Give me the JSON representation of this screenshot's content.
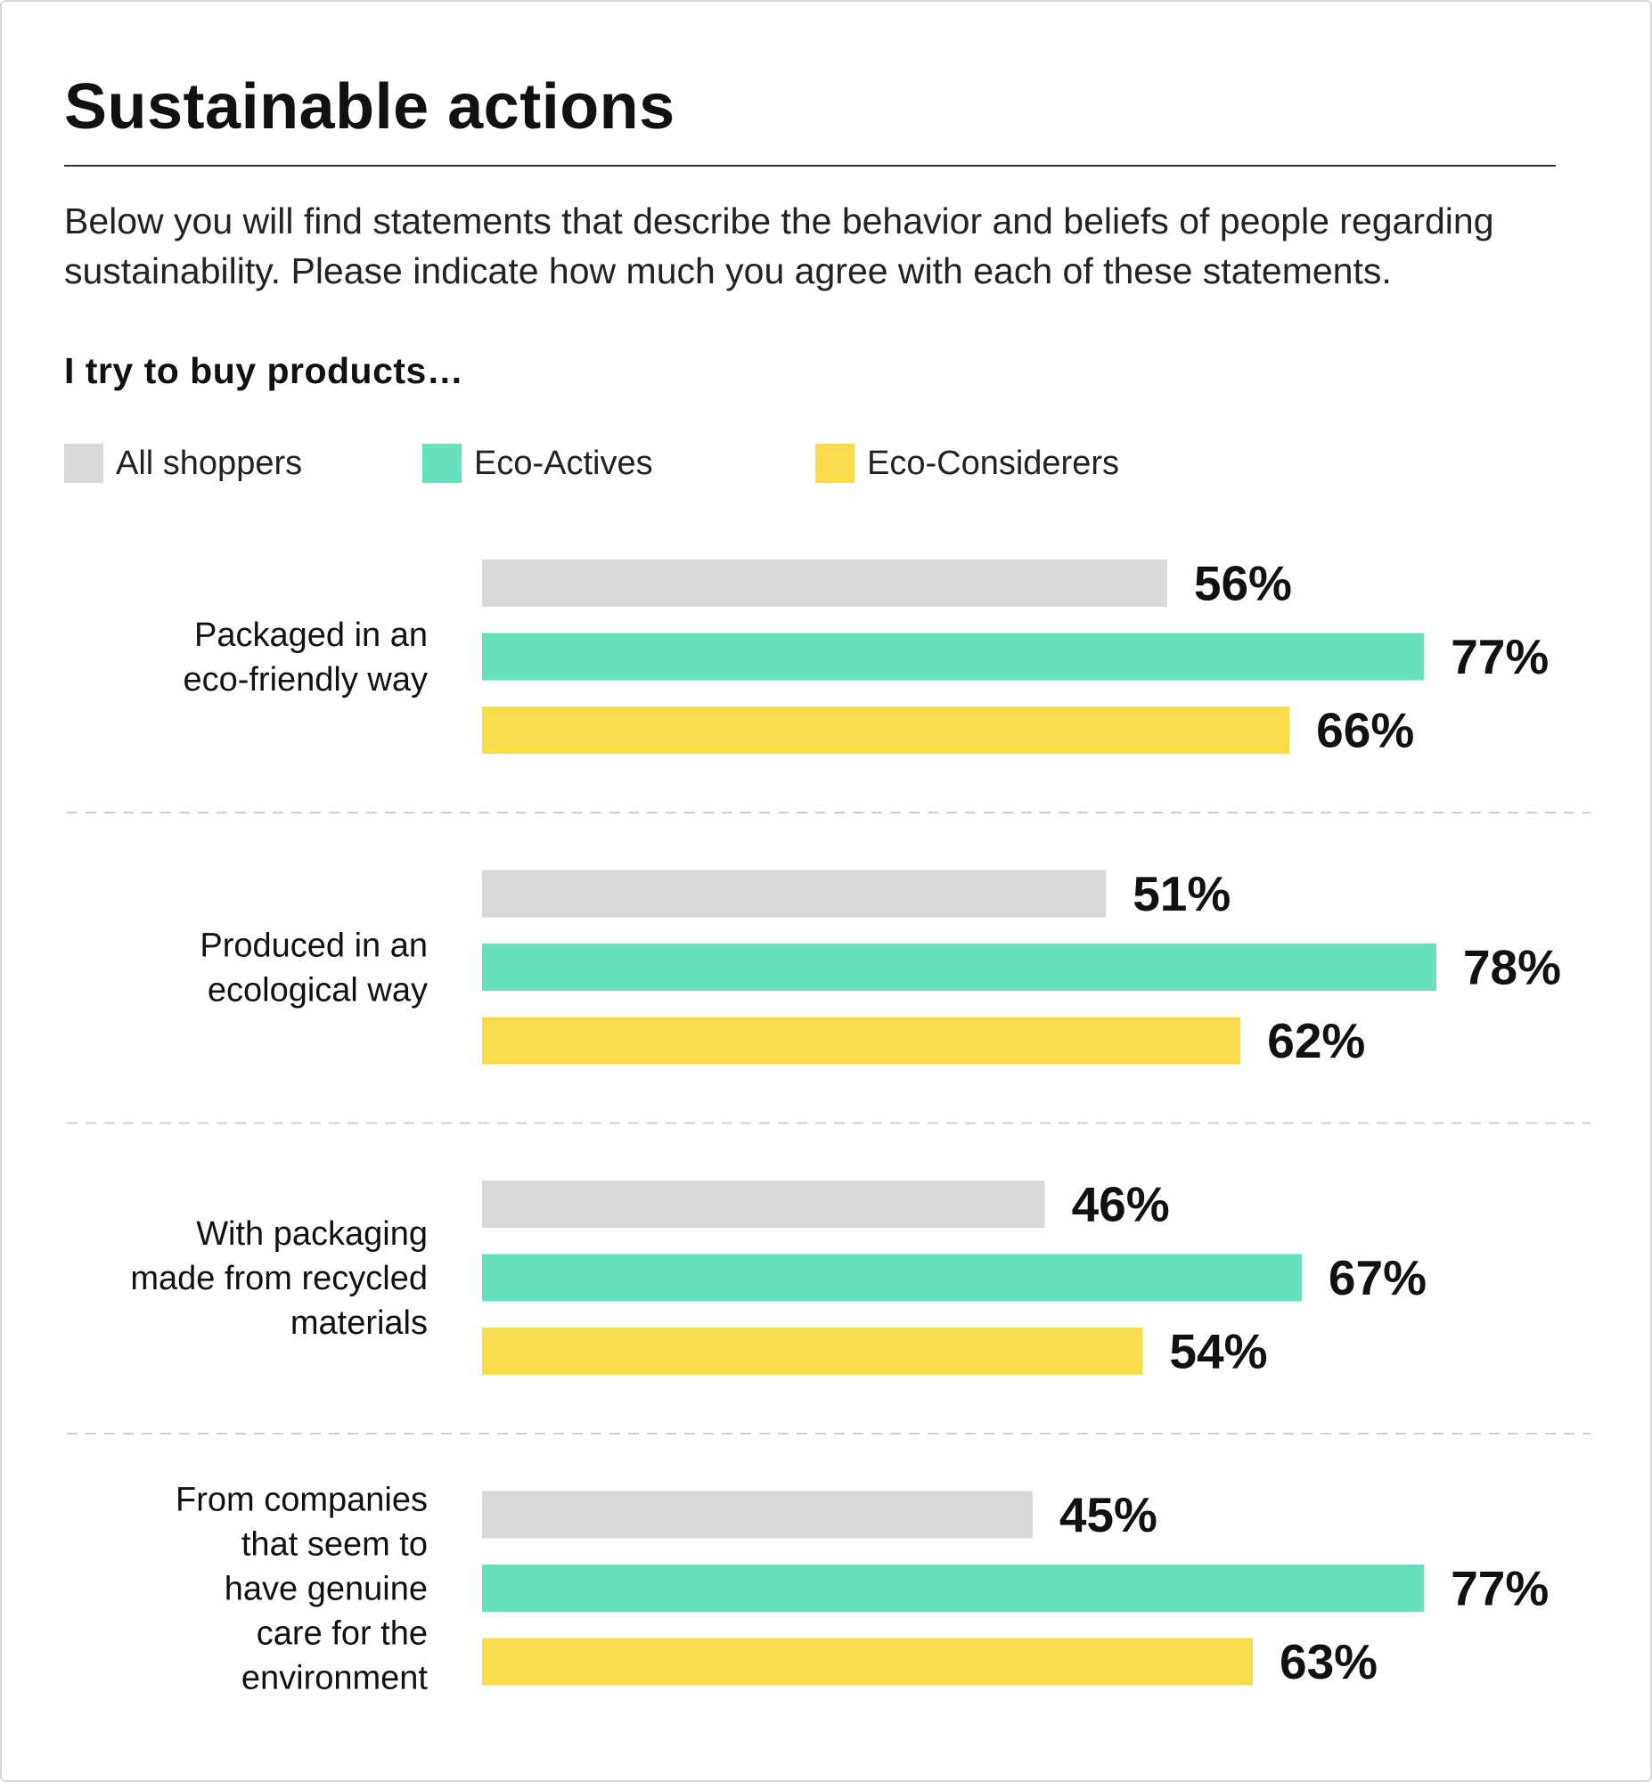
{
  "title": "Sustainable actions",
  "subtitle": "Below you will find statements that describe the behavior and beliefs of people regarding sustainability. Please indicate how much you agree with each of these statements.",
  "question": "I try to buy products…",
  "colors": {
    "All shoppers": "#d9d9d9",
    "Eco-Actives": "#67e0bd",
    "Eco-Considerers": "#f8dc4b",
    "separator": "#cfcfcf"
  },
  "chart_data": {
    "type": "bar",
    "orientation": "horizontal",
    "title": "Sustainable actions",
    "xlabel": "",
    "ylabel": "",
    "xlim": [
      0,
      100
    ],
    "grid": false,
    "legend_position": "top-left",
    "value_format": "percent",
    "categories": [
      [
        "Packaged in an",
        "eco-friendly way"
      ],
      [
        "Produced in an",
        "ecological way"
      ],
      [
        "With packaging",
        "made from recycled",
        "materials"
      ],
      [
        "From companies",
        "that seem to",
        "have genuine",
        "care for the",
        "environment"
      ]
    ],
    "series": [
      {
        "name": "All shoppers",
        "values": [
          56,
          51,
          46,
          45
        ]
      },
      {
        "name": "Eco-Actives",
        "values": [
          77,
          78,
          67,
          77
        ]
      },
      {
        "name": "Eco-Considerers",
        "values": [
          66,
          62,
          54,
          63
        ]
      }
    ]
  }
}
